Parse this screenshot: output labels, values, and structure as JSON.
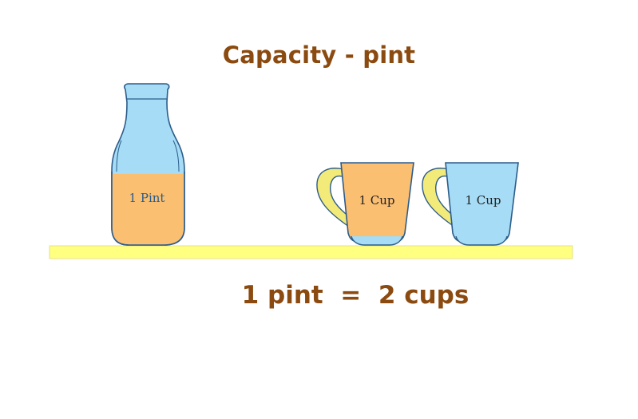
{
  "title": "Capacity - pint",
  "equation": "1 pint  =  2 cups",
  "items": {
    "bottle_label": "1 Pint",
    "cup1_label": "1 Cup",
    "cup2_label": "1 Cup"
  },
  "colors": {
    "text_brown": "#8B4A0F",
    "shelf_yellow": "#FFFF80",
    "liquid_orange": "#FBBF72",
    "glass_blue": "#A6DCF5",
    "handle_yellow": "#F2EB7A",
    "outline_blue": "#2C5C8A"
  }
}
